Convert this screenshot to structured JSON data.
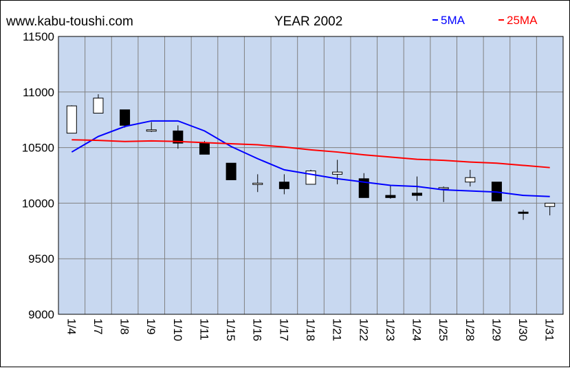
{
  "site": "www.kabu-toushi.com",
  "chart_data": {
    "type": "candlestick",
    "title": "YEAR 2002",
    "legend": [
      {
        "name": "5MA",
        "color": "#0000ff"
      },
      {
        "name": "25MA",
        "color": "#ff0000"
      }
    ],
    "legend_placement": "top-right",
    "ylim": [
      9000,
      11500
    ],
    "yticks": [
      9000,
      9500,
      10000,
      10500,
      11000,
      11500
    ],
    "grid": true,
    "colors": {
      "plot_bg": "#c8d8f0",
      "grid": "#808080",
      "up": "#ffffff",
      "down": "#000000"
    },
    "categories": [
      "1/4",
      "1/7",
      "1/8",
      "1/9",
      "1/10",
      "1/11",
      "1/15",
      "1/16",
      "1/17",
      "1/18",
      "1/21",
      "1/22",
      "1/23",
      "1/24",
      "1/25",
      "1/28",
      "1/29",
      "1/30",
      "1/31"
    ],
    "candles": [
      {
        "open": 10630,
        "high": 10880,
        "low": 10630,
        "close": 10875
      },
      {
        "open": 10810,
        "high": 10980,
        "low": 10810,
        "close": 10945
      },
      {
        "open": 10840,
        "high": 10840,
        "low": 10680,
        "close": 10700
      },
      {
        "open": 10660,
        "high": 10730,
        "low": 10640,
        "close": 10660
      },
      {
        "open": 10650,
        "high": 10700,
        "low": 10490,
        "close": 10540
      },
      {
        "open": 10540,
        "high": 10560,
        "low": 10440,
        "close": 10440
      },
      {
        "open": 10360,
        "high": 10360,
        "low": 10210,
        "close": 10210
      },
      {
        "open": 10170,
        "high": 10260,
        "low": 10100,
        "close": 10180
      },
      {
        "open": 10190,
        "high": 10260,
        "low": 10080,
        "close": 10130
      },
      {
        "open": 10170,
        "high": 10300,
        "low": 10170,
        "close": 10290
      },
      {
        "open": 10260,
        "high": 10390,
        "low": 10170,
        "close": 10280
      },
      {
        "open": 10220,
        "high": 10270,
        "low": 10050,
        "close": 10050
      },
      {
        "open": 10070,
        "high": 10160,
        "low": 10040,
        "close": 10050
      },
      {
        "open": 10090,
        "high": 10240,
        "low": 10020,
        "close": 10070
      },
      {
        "open": 10130,
        "high": 10150,
        "low": 10010,
        "close": 10140
      },
      {
        "open": 10190,
        "high": 10300,
        "low": 10150,
        "close": 10230
      },
      {
        "open": 10190,
        "high": 10190,
        "low": 10020,
        "close": 10020
      },
      {
        "open": 9920,
        "high": 9940,
        "low": 9850,
        "close": 9910
      },
      {
        "open": 9970,
        "high": 10000,
        "low": 9890,
        "close": 10000
      }
    ],
    "series": [
      {
        "name": "5MA",
        "values": [
          10460,
          10600,
          10690,
          10740,
          10740,
          10650,
          10510,
          10400,
          10300,
          10260,
          10220,
          10190,
          10160,
          10150,
          10120,
          10110,
          10100,
          10070,
          10060
        ]
      },
      {
        "name": "25MA",
        "values": [
          10570,
          10565,
          10555,
          10560,
          10555,
          10545,
          10535,
          10525,
          10505,
          10480,
          10460,
          10435,
          10415,
          10395,
          10385,
          10370,
          10360,
          10340,
          10320
        ]
      }
    ]
  }
}
